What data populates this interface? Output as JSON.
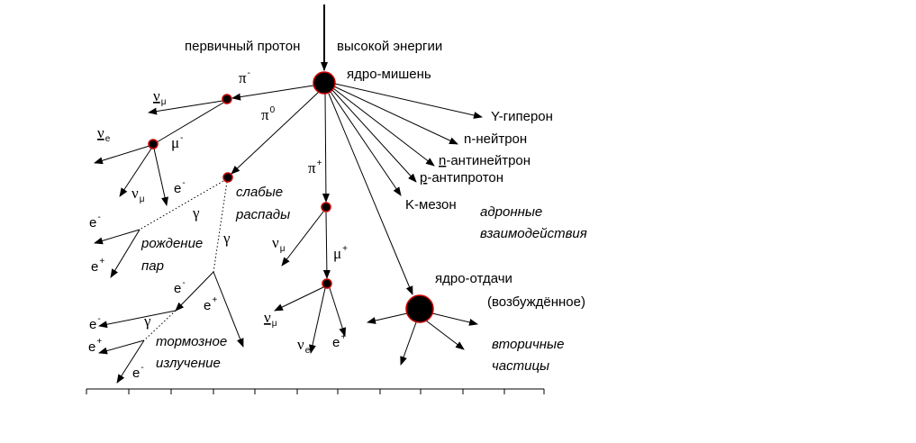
{
  "labels": [
    {
      "text": "первичный протон"
    },
    {
      "text": "высокой энергии"
    },
    {
      "text": "ядро-мишень"
    },
    {
      "text": "π",
      "sup": "-"
    },
    {
      "text": "ν",
      "sub": "μ",
      "bar": true
    },
    {
      "text": "ν",
      "sub": "e",
      "bar": true
    },
    {
      "text": "μ",
      "sup": "-"
    },
    {
      "text": "π",
      "sup": "0"
    },
    {
      "text": "ν",
      "sub": "μ"
    },
    {
      "text": "e",
      "sup": "-"
    },
    {
      "text": "γ"
    },
    {
      "text": "слабые"
    },
    {
      "text": "распады"
    },
    {
      "text": "e",
      "sup": "-"
    },
    {
      "text": "γ"
    },
    {
      "text": "рождение"
    },
    {
      "text": "пар"
    },
    {
      "text": "e",
      "sup": "+"
    },
    {
      "text": "π",
      "sup": "+"
    },
    {
      "text": "ν",
      "sub": "μ"
    },
    {
      "text": "μ",
      "sup": "+"
    },
    {
      "text": "e",
      "sup": "-"
    },
    {
      "text": "e",
      "sup": "+"
    },
    {
      "text": "e",
      "sup": "-"
    },
    {
      "text": "γ"
    },
    {
      "text": "e",
      "sup": "+"
    },
    {
      "text": "тормозное"
    },
    {
      "text": "излучение"
    },
    {
      "text": "e",
      "sup": "-"
    },
    {
      "text": "ν",
      "sub": "μ",
      "bar": true
    },
    {
      "text": "ν",
      "sub": "e"
    },
    {
      "text": "e",
      "sup": "+"
    },
    {
      "text": "Y-гиперон"
    },
    {
      "text": "n-нейтрон"
    },
    {
      "text": "n",
      "rest": "-антинейтрон",
      "bar": true
    },
    {
      "text": "p",
      "rest": "-антипротон",
      "bar": true
    },
    {
      "text": "K-мезон"
    },
    {
      "text": "адронные"
    },
    {
      "text": "взаимодействия"
    },
    {
      "text": "ядро-отдачи"
    },
    {
      "text": "(возбуждённое)"
    },
    {
      "text": "вторичные"
    },
    {
      "text": "частицы"
    }
  ]
}
